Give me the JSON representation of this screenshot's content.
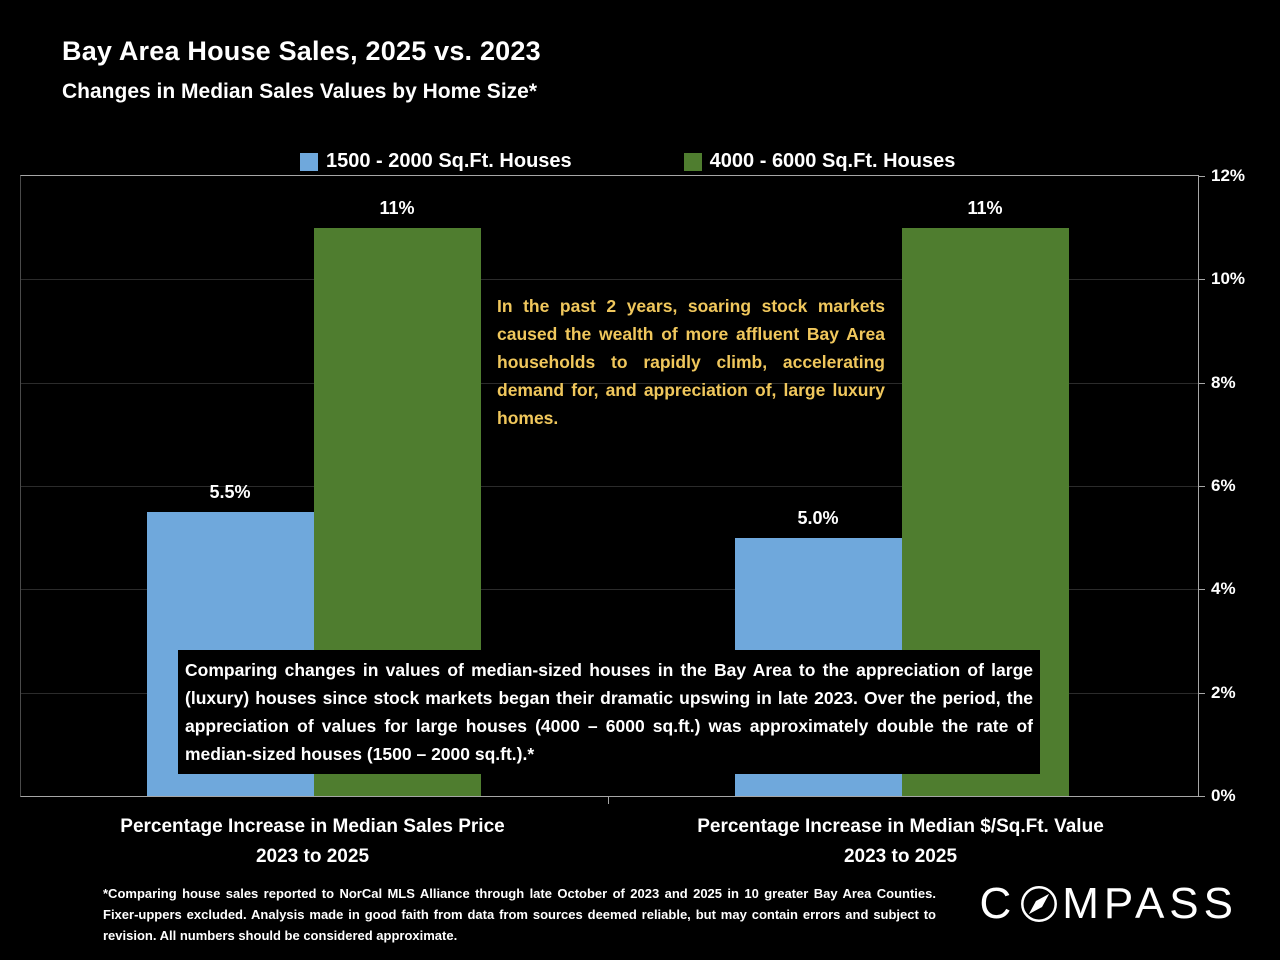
{
  "title": "Bay Area House Sales, 2025 vs. 2023",
  "subtitle": "Changes in Median Sales Values by Home Size*",
  "colors": {
    "background": "#000000",
    "series1": "#6FA8DC",
    "series2": "#4F7D2F",
    "axis": "#A6A6A6",
    "annotation_yellow": "#F0C75C",
    "text": "#FFFFFF"
  },
  "legend": [
    {
      "label": "1500 - 2000 Sq.Ft. Houses",
      "color": "#6FA8DC"
    },
    {
      "label": "4000 - 6000 Sq.Ft. Houses",
      "color": "#4F7D2F"
    }
  ],
  "chart_data": {
    "type": "bar",
    "categories": [
      "Percentage Increase in Median Sales Price\n2023 to 2025",
      "Percentage Increase in Median $/Sq.Ft. Value\n2023 to 2025"
    ],
    "series": [
      {
        "name": "1500 - 2000 Sq.Ft. Houses",
        "color": "#6FA8DC",
        "values": [
          5.5,
          5.0
        ],
        "labels": [
          "5.5%",
          "5.0%"
        ]
      },
      {
        "name": "4000 - 6000 Sq.Ft. Houses",
        "color": "#4F7D2F",
        "values": [
          11,
          11
        ],
        "labels": [
          "11%",
          "11%"
        ]
      }
    ],
    "title": "Bay Area House Sales, 2025 vs. 2023",
    "xlabel": "",
    "ylabel": "",
    "ylim": [
      0,
      12
    ],
    "yticks": [
      "0%",
      "2%",
      "4%",
      "6%",
      "8%",
      "10%",
      "12%"
    ],
    "grid": true,
    "legend_position": "top"
  },
  "annotations": {
    "yellow_note": "In the past 2 years, soaring stock markets caused the wealth of more affluent Bay Area households to rapidly climb, accelerating demand for, and appreciation of, large luxury homes.",
    "white_note": "Comparing changes in values of median-sized houses in the Bay Area to the appreciation of large (luxury) houses since stock markets began their dramatic upswing in late 2023. Over the period, the appreciation of values for large houses (4000 – 6000 sq.ft.) was approximately double the rate of median-sized houses (1500 – 2000 sq.ft.).*"
  },
  "footnote": "*Comparing house sales reported to NorCal MLS Alliance through late October of 2023 and 2025 in 10 greater Bay Area Counties. Fixer-uppers excluded. Analysis made in good faith from data from sources deemed reliable, but may contain errors and subject to revision. All numbers should be considered approximate.",
  "brand": "COMPASS"
}
